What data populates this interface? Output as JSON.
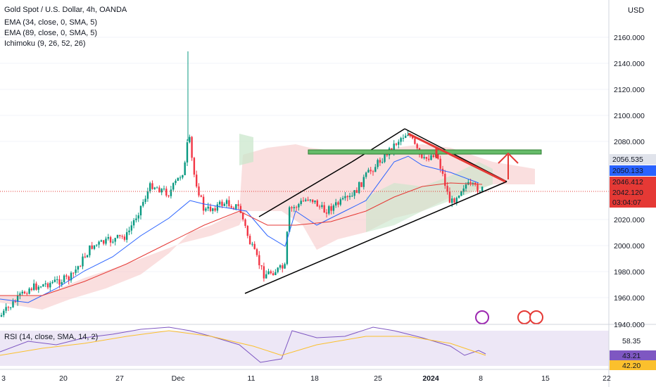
{
  "header": {
    "symbol": "Gold Spot / U.S. Dollar, 4h, OANDA",
    "indicators": [
      "EMA (34, close, 0, SMA, 5)",
      "EMA (89, close, 0, SMA, 5)",
      "Ichimoku (9, 26, 52, 26)"
    ]
  },
  "currency": "USD",
  "price_axis": [
    "2160.000",
    "2140.000",
    "2120.000",
    "2100.000",
    "2080.000",
    "2020.000",
    "2000.000",
    "1980.000",
    "1960.000",
    "1940.000"
  ],
  "price_badges": [
    "2056.535",
    "2050.133",
    "2046.412",
    "2042.120",
    "03:04:07"
  ],
  "rsi": {
    "label": "RSI (14, close, SMA, 14, 2)",
    "axis": [
      "58.35"
    ],
    "badges": [
      "43.21",
      "42.20"
    ]
  },
  "time_axis": [
    "3",
    "20",
    "27",
    "Dec",
    "11",
    "18",
    "25",
    "2024",
    "8",
    "15",
    "22"
  ]
}
